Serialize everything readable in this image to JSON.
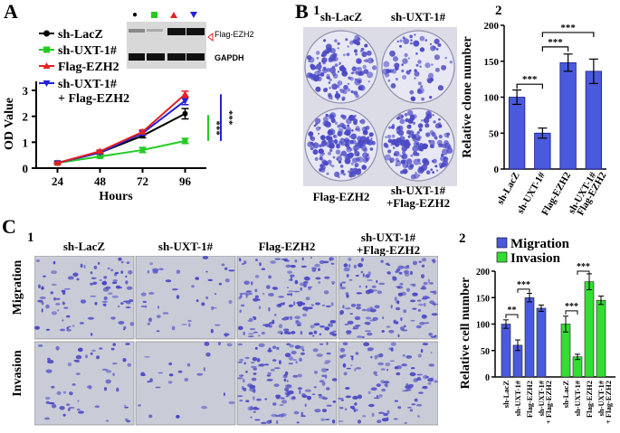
{
  "panel_letters": {
    "A": "A",
    "B": "B",
    "C": "C"
  },
  "sub_numbers": {
    "b1": "1",
    "b2": "2",
    "c1": "1",
    "c2": "2"
  },
  "wb": {
    "band1": "Flag-EZH2",
    "band2": "GAPDH"
  },
  "plate_labels": [
    "sh-LacZ",
    "sh-UXT-1#",
    "Flag-EZH2",
    "sh-UXT-1#\n+Flag-EZH2"
  ],
  "transwell": {
    "col_labels": [
      "sh-LacZ",
      "sh-UXT-1#",
      "Flag-EZH2",
      "sh-UXT-1#\n+Flag-EZH2"
    ],
    "row_labels": [
      "Migration",
      "Invasion"
    ]
  },
  "colors": {
    "black": "#000000",
    "green": "#22cc22",
    "red": "#e32222",
    "blue": "#2222dd",
    "bar_blue": "#4a5adc",
    "bar_green": "#33dd33",
    "crystal": "#4b49c6"
  },
  "chart_data": [
    {
      "id": "A",
      "type": "line",
      "xlabel": "Hours",
      "ylabel": "OD Value",
      "x": [
        24,
        48,
        72,
        96
      ],
      "ylim": [
        0,
        3
      ],
      "yticks": [
        0,
        1,
        2,
        3
      ],
      "series": [
        {
          "name": "sh-LacZ",
          "values": [
            0.2,
            0.6,
            1.25,
            2.1
          ],
          "errors": [
            0.03,
            0.05,
            0.08,
            0.2
          ],
          "color": "#000000",
          "marker": "circle"
        },
        {
          "name": "sh-UXT-1#",
          "values": [
            0.2,
            0.45,
            0.7,
            1.05
          ],
          "errors": [
            0.03,
            0.05,
            0.1,
            0.1
          ],
          "color": "#22cc22",
          "marker": "square"
        },
        {
          "name": "Flag-EZH2",
          "values": [
            0.2,
            0.65,
            1.4,
            2.85
          ],
          "errors": [
            0.03,
            0.05,
            0.08,
            0.12
          ],
          "color": "#e32222",
          "marker": "triangle-up"
        },
        {
          "name": "sh-UXT-1#\n+ Flag-EZH2",
          "values": [
            0.2,
            0.6,
            1.35,
            2.6
          ],
          "errors": [
            0.03,
            0.05,
            0.08,
            0.15
          ],
          "color": "#2222dd",
          "marker": "triangle-down"
        }
      ],
      "significance": [
        "***",
        "***"
      ]
    },
    {
      "id": "B2",
      "type": "bar",
      "ylabel": "Relative clone number",
      "categories": [
        "sh-LacZ",
        "sh-UXT-1#",
        "Flag-EZH2",
        "sh-UXT-1#\n+ Flag-EZH2"
      ],
      "values": [
        100,
        50,
        148,
        136
      ],
      "errors": [
        10,
        7,
        12,
        17
      ],
      "ylim": [
        0,
        200
      ],
      "yticks": [
        0,
        50,
        100,
        150,
        200
      ],
      "color": "#4a5adc",
      "significance": [
        "***",
        "***",
        "***"
      ]
    },
    {
      "id": "C2",
      "type": "bar",
      "ylabel": "Relative cell number",
      "categories": [
        "sh-LacZ",
        "sh-UXT-1#",
        "Flag-EZH2",
        "sh-UXT-1#\n+ Flag-EZH2"
      ],
      "ylim": [
        0,
        200
      ],
      "yticks": [
        0,
        50,
        100,
        150,
        200
      ],
      "series": [
        {
          "name": "Migration",
          "values": [
            100,
            60,
            150,
            130
          ],
          "errors": [
            8,
            10,
            8,
            6
          ],
          "color": "#4a5adc"
        },
        {
          "name": "Invasion",
          "values": [
            100,
            38,
            180,
            145
          ],
          "errors": [
            15,
            5,
            15,
            8
          ],
          "color": "#33dd33"
        }
      ],
      "significance": [
        "**",
        "***",
        "***",
        "***"
      ]
    }
  ]
}
